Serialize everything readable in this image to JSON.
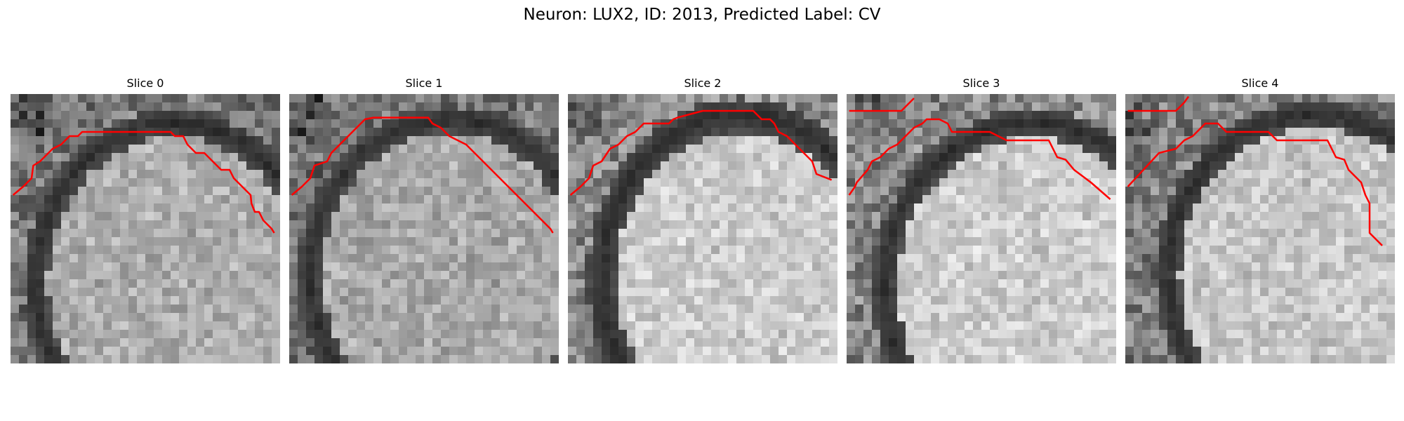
{
  "figure": {
    "title": "Neuron: LUX2, ID: 2013, Predicted Label: CV"
  },
  "panels": [
    {
      "title": "Slice 0"
    },
    {
      "title": "Slice 1"
    },
    {
      "title": "Slice 2"
    },
    {
      "title": "Slice 3"
    },
    {
      "title": "Slice 4"
    }
  ],
  "colors": {
    "contour": "#ff0000"
  }
}
